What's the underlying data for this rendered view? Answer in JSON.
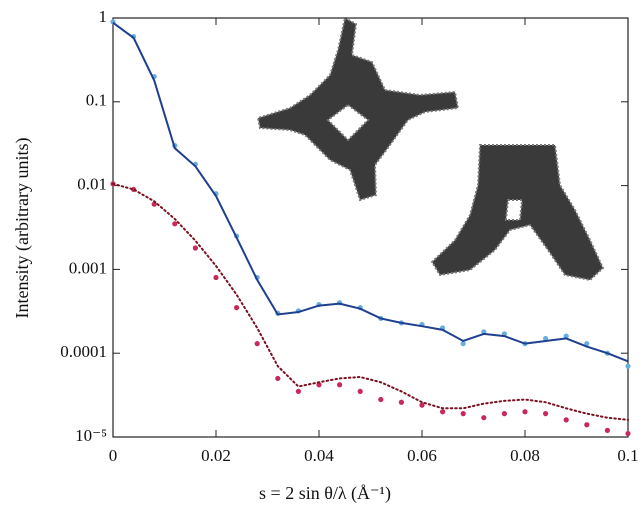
{
  "chart_data": {
    "type": "line",
    "scale_y": "log",
    "xlabel": "s = 2 sin θ/λ (Å⁻¹)",
    "ylabel": "Intensity (arbitrary units)",
    "xlim": [
      0,
      0.1
    ],
    "xticks": [
      0,
      0.02,
      0.04,
      0.06,
      0.08,
      0.1
    ],
    "ylim": [
      1e-05,
      1
    ],
    "yticks": [
      {
        "value": 1e-05,
        "label": "10⁻⁵"
      },
      0.0001,
      0.001,
      0.01,
      0.1,
      1
    ],
    "x": [
      0,
      0.004,
      0.008,
      0.012,
      0.016,
      0.02,
      0.024,
      0.028,
      0.032,
      0.036,
      0.04,
      0.044,
      0.048,
      0.052,
      0.056,
      0.06,
      0.064,
      0.068,
      0.072,
      0.076,
      0.08,
      0.084,
      0.088,
      0.092,
      0.096,
      0.1
    ],
    "series": [
      {
        "color": "#6aaee0",
        "style": "points",
        "values": [
          0.9,
          0.6,
          0.2,
          0.03,
          0.018,
          0.008,
          0.0025,
          0.0008,
          0.0003,
          0.00032,
          0.00038,
          0.0004,
          0.00035,
          0.00026,
          0.00023,
          0.00022,
          0.0002,
          0.00013,
          0.00018,
          0.00017,
          0.00013,
          0.00015,
          0.00016,
          0.00013,
          0.0001,
          7e-05
        ]
      },
      {
        "color": "#1f3f8f",
        "style": "line",
        "values": [
          0.88,
          0.58,
          0.18,
          0.028,
          0.017,
          0.0075,
          0.0024,
          0.00075,
          0.00029,
          0.00031,
          0.00037,
          0.00039,
          0.00034,
          0.00026,
          0.00023,
          0.00021,
          0.00019,
          0.00014,
          0.00017,
          0.00016,
          0.00013,
          0.00014,
          0.00015,
          0.00012,
          0.0001,
          8e-05
        ]
      },
      {
        "color": "#c8285a",
        "style": "points",
        "values": [
          0.0105,
          0.009,
          0.006,
          0.0035,
          0.0018,
          0.0008,
          0.00035,
          0.00013,
          5e-05,
          3.5e-05,
          4.2e-05,
          4.2e-05,
          3.5e-05,
          2.8e-05,
          2.6e-05,
          2.4e-05,
          2e-05,
          1.9e-05,
          1.7e-05,
          1.9e-05,
          2e-05,
          1.9e-05,
          1.6e-05,
          1.4e-05,
          1.2e-05,
          1.1e-05
        ]
      },
      {
        "color": "#7a1020",
        "style": "dotted",
        "values": [
          0.0105,
          0.009,
          0.0065,
          0.004,
          0.0022,
          0.0011,
          0.0005,
          0.0002,
          7e-05,
          4e-05,
          4.5e-05,
          5e-05,
          5.2e-05,
          4.5e-05,
          3.5e-05,
          2.6e-05,
          2.2e-05,
          2.2e-05,
          2.5e-05,
          2.7e-05,
          2.8e-05,
          2.6e-05,
          2.2e-05,
          1.9e-05,
          1.7e-05,
          1.6e-05
        ]
      }
    ]
  }
}
